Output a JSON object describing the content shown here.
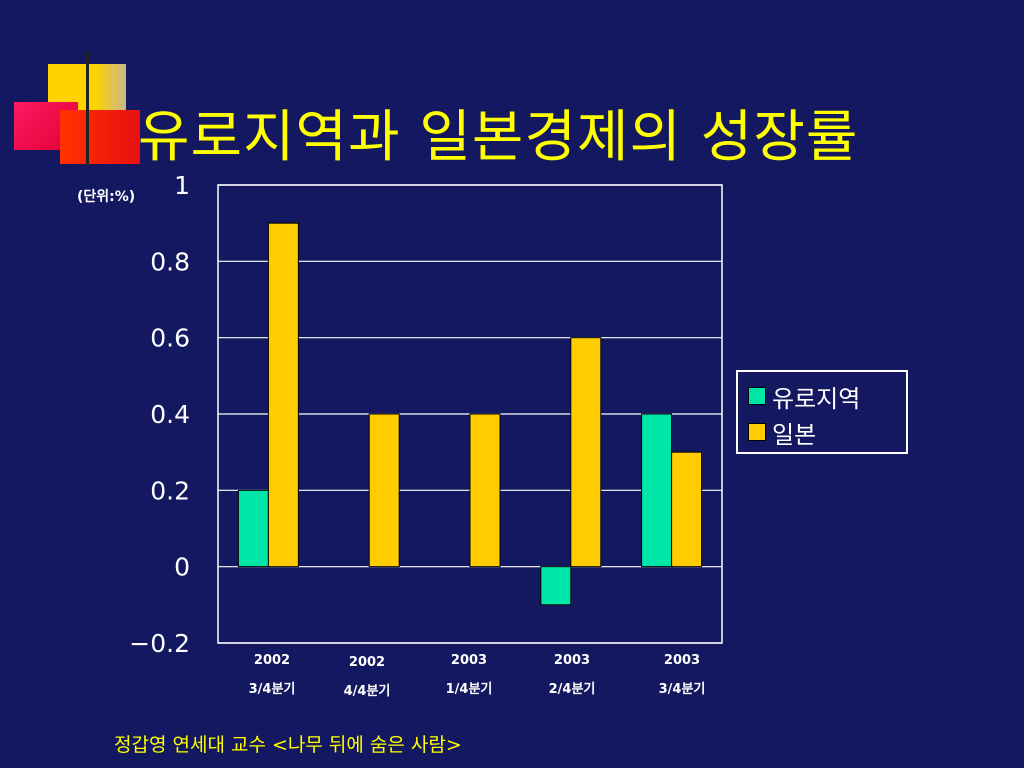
{
  "title": "유로지역과 일본경제의 성장률",
  "unit_label": "(단위:%)",
  "footer": "정갑영 연세대 교수   <나무 뒤에 숨은 사람>",
  "colors": {
    "background": "#141860",
    "title": "#ffff00",
    "euro": "#00e6a8",
    "japan": "#ffcc00"
  },
  "chart_data": {
    "type": "bar",
    "categories": [
      {
        "year": "2002",
        "quarter": "3/4분기"
      },
      {
        "year": "2002",
        "quarter": "4/4분기"
      },
      {
        "year": "2003",
        "quarter": "1/4분기"
      },
      {
        "year": "2003",
        "quarter": "2/4분기"
      },
      {
        "year": "2003",
        "quarter": "3/4분기"
      }
    ],
    "series": [
      {
        "name": "유로지역",
        "values": [
          0.2,
          0,
          0,
          -0.1,
          0.4
        ]
      },
      {
        "name": "일본",
        "values": [
          0.9,
          0.4,
          0.4,
          0.6,
          0.3
        ]
      }
    ],
    "ylim": [
      -0.2,
      1
    ],
    "yticks": [
      "1",
      "0.8",
      "0.6",
      "0.4",
      "0.2",
      "0",
      "−0.2"
    ],
    "grid": true,
    "legend_position": "right"
  }
}
